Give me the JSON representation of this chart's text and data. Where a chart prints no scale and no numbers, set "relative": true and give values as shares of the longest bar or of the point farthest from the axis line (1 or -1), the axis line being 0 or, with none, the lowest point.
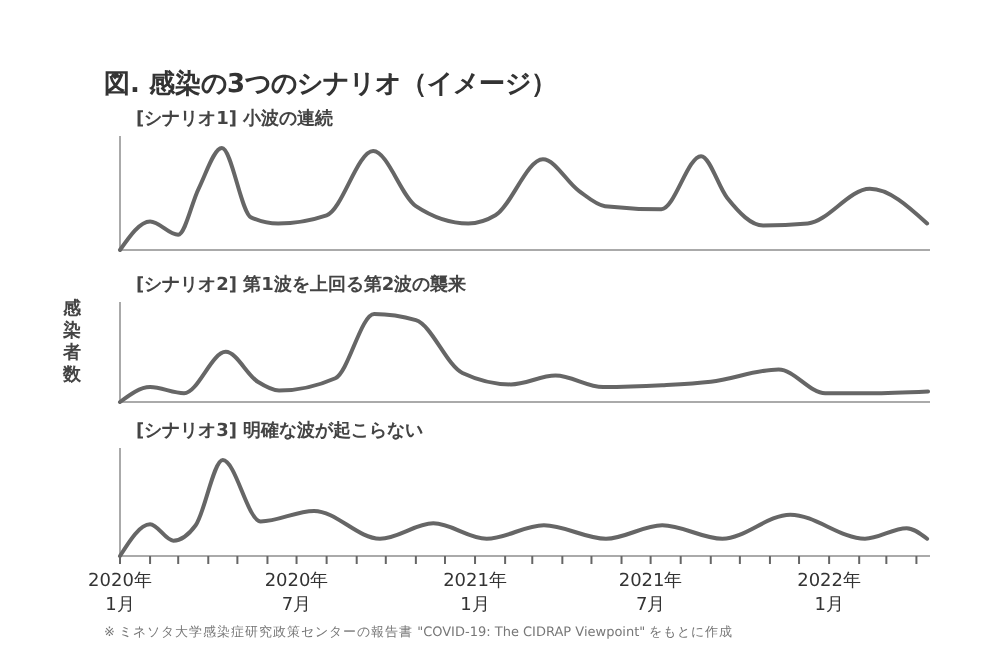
{
  "chart_data": [
    {
      "type": "line",
      "title": "図. 感染の3つのシナリオ（イメージ）",
      "subtitle": "[シナリオ1] 小波の連続",
      "relative": true,
      "tick_labels": false,
      "xlim": [
        "2020-01-01",
        "2022-04-15"
      ],
      "x": [
        "2020-01-01",
        "2020-02-01",
        "2020-03-01",
        "2020-03-22",
        "2020-04-15",
        "2020-05-15",
        "2020-06-12",
        "2020-08-01",
        "2020-09-18",
        "2020-11-01",
        "2020-12-25",
        "2021-01-22",
        "2021-03-12",
        "2021-04-18",
        "2021-05-15",
        "2021-07-12",
        "2021-08-22",
        "2021-09-18",
        "2021-10-25",
        "2021-12-10",
        "2022-02-12",
        "2022-04-12"
      ],
      "values": [
        0,
        0.28,
        0.15,
        0.6,
        1,
        0.32,
        0.26,
        0.34,
        0.97,
        0.43,
        0.26,
        0.34,
        0.89,
        0.58,
        0.43,
        0.4,
        0.92,
        0.51,
        0.24,
        0.26,
        0.6,
        0.26
      ],
      "color": "#666666"
    },
    {
      "type": "line",
      "subtitle": "[シナリオ2] 第1波を上回る第2波の襲来",
      "ylabel": "感染者数",
      "relative": true,
      "tick_labels": false,
      "xlim": [
        "2020-01-01",
        "2022-04-15"
      ],
      "x": [
        "2020-01-01",
        "2020-02-01",
        "2020-03-07",
        "2020-04-19",
        "2020-05-22",
        "2020-06-13",
        "2020-08-10",
        "2020-09-19",
        "2020-11-01",
        "2020-12-19",
        "2021-02-07",
        "2021-03-25",
        "2021-05-13",
        "2021-07-13",
        "2021-09-01",
        "2021-11-10",
        "2021-12-28",
        "2022-02-13",
        "2022-04-13"
      ],
      "values": [
        0,
        0.17,
        0.1,
        0.57,
        0.23,
        0.13,
        0.27,
        1,
        0.93,
        0.33,
        0.2,
        0.3,
        0.17,
        0.19,
        0.23,
        0.37,
        0.1,
        0.1,
        0.12
      ],
      "color": "#666666"
    },
    {
      "type": "line",
      "subtitle": "[シナリオ3] 明確な波が起こらない",
      "relative": true,
      "tick_labels": "x",
      "xlim": [
        "2020-01-01",
        "2022-04-15"
      ],
      "annotations": [
        "※ ミネソタ大学感染症研究政策センターの報告書 \"COVID-19: The CIDRAP Viewpoint\" をもとに作成"
      ],
      "xticks": [
        {
          "value": "2020-01",
          "label": "2020年\n1月"
        },
        {
          "value": "2020-02",
          "label": null
        },
        {
          "value": "2020-03",
          "label": null
        },
        {
          "value": "2020-04",
          "label": null
        },
        {
          "value": "2020-05",
          "label": null
        },
        {
          "value": "2020-06",
          "label": null
        },
        {
          "value": "2020-07",
          "label": "2020年\n7月"
        },
        {
          "value": "2020-08",
          "label": null
        },
        {
          "value": "2020-09",
          "label": null
        },
        {
          "value": "2020-10",
          "label": null
        },
        {
          "value": "2020-11",
          "label": null
        },
        {
          "value": "2020-12",
          "label": null
        },
        {
          "value": "2021-01",
          "label": "2021年\n1月"
        },
        {
          "value": "2021-02",
          "label": null
        },
        {
          "value": "2021-03",
          "label": null
        },
        {
          "value": "2021-04",
          "label": null
        },
        {
          "value": "2021-05",
          "label": null
        },
        {
          "value": "2021-06",
          "label": null
        },
        {
          "value": "2021-07",
          "label": "2021年\n7月"
        },
        {
          "value": "2021-08",
          "label": null
        },
        {
          "value": "2021-09",
          "label": null
        },
        {
          "value": "2021-10",
          "label": null
        },
        {
          "value": "2021-11",
          "label": null
        },
        {
          "value": "2021-12",
          "label": null
        },
        {
          "value": "2022-01",
          "label": "2022年\n1月"
        },
        {
          "value": "2022-02",
          "label": null
        },
        {
          "value": "2022-03",
          "label": null
        },
        {
          "value": "2022-04",
          "label": null
        }
      ],
      "x": [
        "2020-01-01",
        "2020-02-01",
        "2020-02-25",
        "2020-03-19",
        "2020-04-16",
        "2020-05-25",
        "2020-07-19",
        "2020-09-25",
        "2020-11-19",
        "2021-01-13",
        "2021-03-13",
        "2021-05-16",
        "2021-07-13",
        "2021-09-13",
        "2021-11-22",
        "2022-02-07",
        "2022-03-22",
        "2022-04-12"
      ],
      "values": [
        0,
        0.33,
        0.16,
        0.32,
        1,
        0.36,
        0.47,
        0.18,
        0.34,
        0.18,
        0.32,
        0.18,
        0.32,
        0.18,
        0.43,
        0.18,
        0.29,
        0.18
      ],
      "color": "#666666"
    }
  ]
}
